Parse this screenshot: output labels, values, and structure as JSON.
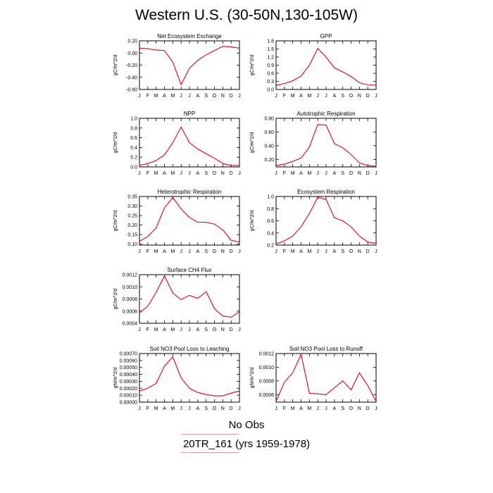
{
  "page_title": "Western U.S. (30-50N,130-105W)",
  "month_labels": [
    "J",
    "F",
    "M",
    "A",
    "M",
    "J",
    "J",
    "A",
    "S",
    "O",
    "N",
    "D",
    "J"
  ],
  "legend": {
    "obs_label": "No Obs",
    "model_label": "20TR_161 (yrs 1959-1978)"
  },
  "colors": {
    "model": "#e8000b",
    "axis": "#000000",
    "obs": "#f2b0b0"
  },
  "chart_data": [
    {
      "type": "line",
      "title": "Net Ecosystem Exchange",
      "ylabel": "gC/m^2/d",
      "ylim": [
        -0.6,
        0.2
      ],
      "yticks": [
        "-0.60",
        "-0.40",
        "-0.20",
        "0.00",
        "0.20"
      ],
      "ytick_values": [
        -0.6,
        -0.4,
        -0.2,
        0.0,
        0.2
      ],
      "x": [
        "J",
        "F",
        "M",
        "A",
        "M",
        "J",
        "J",
        "A",
        "S",
        "O",
        "N",
        "D",
        "J"
      ],
      "series": [
        {
          "values": [
            0.08,
            0.07,
            0.05,
            0.04,
            -0.15,
            -0.52,
            -0.25,
            -0.12,
            -0.03,
            0.04,
            0.11,
            0.1,
            0.08
          ]
        }
      ]
    },
    {
      "type": "line",
      "title": "GPP",
      "ylabel": "gC/m^2/d",
      "ylim": [
        0.0,
        1.8
      ],
      "yticks": [
        "0.0",
        "0.3",
        "0.6",
        "0.9",
        "1.2",
        "1.5",
        "1.8"
      ],
      "ytick_values": [
        0.0,
        0.3,
        0.6,
        0.9,
        1.2,
        1.5,
        1.8
      ],
      "x": [
        "J",
        "F",
        "M",
        "A",
        "M",
        "J",
        "J",
        "A",
        "S",
        "O",
        "N",
        "D",
        "J"
      ],
      "series": [
        {
          "values": [
            0.15,
            0.22,
            0.32,
            0.5,
            0.9,
            1.52,
            1.2,
            0.8,
            0.65,
            0.48,
            0.25,
            0.17,
            0.16
          ]
        }
      ]
    },
    {
      "type": "line",
      "title": "NPP",
      "ylabel": "gC/m^2/d",
      "ylim": [
        0.0,
        1.0
      ],
      "yticks": [
        "0.0",
        "0.2",
        "0.4",
        "0.6",
        "0.8",
        "1.0"
      ],
      "ytick_values": [
        0.0,
        0.2,
        0.4,
        0.6,
        0.8,
        1.0
      ],
      "x": [
        "J",
        "F",
        "M",
        "A",
        "M",
        "J",
        "J",
        "A",
        "S",
        "O",
        "N",
        "D",
        "J"
      ],
      "series": [
        {
          "values": [
            0.03,
            0.07,
            0.13,
            0.25,
            0.5,
            0.82,
            0.5,
            0.37,
            0.27,
            0.18,
            0.07,
            0.03,
            0.03
          ]
        }
      ]
    },
    {
      "type": "line",
      "title": "Autotrophic Respiration",
      "ylabel": "gC/m^2/d",
      "ylim": [
        0.09,
        0.8
      ],
      "yticks": [
        "0.20",
        "0.40",
        "0.60",
        "0.80"
      ],
      "ytick_values": [
        0.2,
        0.4,
        0.6,
        0.8
      ],
      "x": [
        "J",
        "F",
        "M",
        "A",
        "M",
        "J",
        "J",
        "A",
        "S",
        "O",
        "N",
        "D",
        "J"
      ],
      "series": [
        {
          "values": [
            0.11,
            0.13,
            0.17,
            0.22,
            0.38,
            0.71,
            0.7,
            0.43,
            0.37,
            0.27,
            0.15,
            0.11,
            0.1
          ]
        }
      ]
    },
    {
      "type": "line",
      "title": "Heterotrophic Respiration",
      "ylabel": "gC/m^2/d",
      "ylim": [
        0.095,
        0.35
      ],
      "yticks": [
        "0.10",
        "0.15",
        "0.20",
        "0.25",
        "0.30",
        "0.35"
      ],
      "ytick_values": [
        0.1,
        0.15,
        0.2,
        0.25,
        0.3,
        0.35
      ],
      "x": [
        "J",
        "F",
        "M",
        "A",
        "M",
        "J",
        "J",
        "A",
        "S",
        "O",
        "N",
        "D",
        "J"
      ],
      "series": [
        {
          "values": [
            0.115,
            0.14,
            0.185,
            0.29,
            0.345,
            0.285,
            0.24,
            0.215,
            0.215,
            0.205,
            0.175,
            0.12,
            0.11
          ]
        }
      ]
    },
    {
      "type": "line",
      "title": "Ecosystem Respiration",
      "ylabel": "gC/m^2/d",
      "ylim": [
        0.2,
        1.0
      ],
      "yticks": [
        "0.2",
        "0.4",
        "0.6",
        "0.8",
        "1.0"
      ],
      "ytick_values": [
        0.2,
        0.4,
        0.6,
        0.8,
        1.0
      ],
      "x": [
        "J",
        "F",
        "M",
        "A",
        "M",
        "J",
        "J",
        "A",
        "S",
        "O",
        "N",
        "D",
        "J"
      ],
      "series": [
        {
          "values": [
            0.22,
            0.27,
            0.35,
            0.5,
            0.72,
            0.99,
            0.95,
            0.65,
            0.6,
            0.5,
            0.35,
            0.25,
            0.23
          ]
        }
      ]
    },
    {
      "type": "line",
      "title": "Surface CH4 Flux",
      "ylabel": "gC/m^2/d",
      "ylim": [
        0.0004,
        0.0012
      ],
      "yticks": [
        "0.0004",
        "0.0006",
        "0.0008",
        "0.0010",
        "0.0012"
      ],
      "ytick_values": [
        0.0004,
        0.0006,
        0.0008,
        0.001,
        0.0012
      ],
      "x": [
        "J",
        "F",
        "M",
        "A",
        "M",
        "J",
        "J",
        "A",
        "S",
        "O",
        "N",
        "D",
        "J"
      ],
      "series": [
        {
          "values": [
            0.00057,
            0.00068,
            0.00091,
            0.00118,
            0.0009,
            0.00079,
            0.00086,
            0.00081,
            0.00092,
            0.00064,
            0.00052,
            0.0005,
            0.00059
          ]
        }
      ]
    },
    {
      "type": "line",
      "title": "Soil NO3 Pool Loss to Leaching",
      "ylabel": "gN/m^2/d",
      "ylim": [
        0.0,
        0.0007
      ],
      "yticks": [
        "0.00000",
        "0.00010",
        "0.00020",
        "0.00030",
        "0.00040",
        "0.00050",
        "0.00060",
        "0.00070"
      ],
      "ytick_values": [
        0,
        0.0001,
        0.0002,
        0.0003,
        0.0004,
        0.0005,
        0.0006,
        0.0007
      ],
      "x": [
        "J",
        "F",
        "M",
        "A",
        "M",
        "J",
        "J",
        "A",
        "S",
        "O",
        "N",
        "D",
        "J"
      ],
      "series": [
        {
          "values": [
            0.00016,
            0.0002,
            0.00027,
            0.00052,
            0.00065,
            0.00035,
            0.0002,
            0.00014,
            0.00011,
            9e-05,
            9e-05,
            0.00013,
            0.00016
          ]
        }
      ]
    },
    {
      "type": "line",
      "title": "Soil NO3 Pool Loss to Runoff",
      "ylabel": "gN/m^2/d",
      "ylim": [
        0.00049,
        0.0012
      ],
      "yticks": [
        "0.0006",
        "0.0008",
        "0.0010",
        "0.0012"
      ],
      "ytick_values": [
        0.0006,
        0.0008,
        0.001,
        0.0012
      ],
      "x": [
        "J",
        "F",
        "M",
        "A",
        "M",
        "J",
        "J",
        "A",
        "S",
        "O",
        "N",
        "D",
        "J"
      ],
      "series": [
        {
          "values": [
            0.0005,
            0.00078,
            0.00092,
            0.00119,
            0.00062,
            0.00061,
            0.0006,
            0.0007,
            0.0008,
            0.00067,
            0.00092,
            0.00073,
            0.0005
          ]
        }
      ]
    }
  ]
}
